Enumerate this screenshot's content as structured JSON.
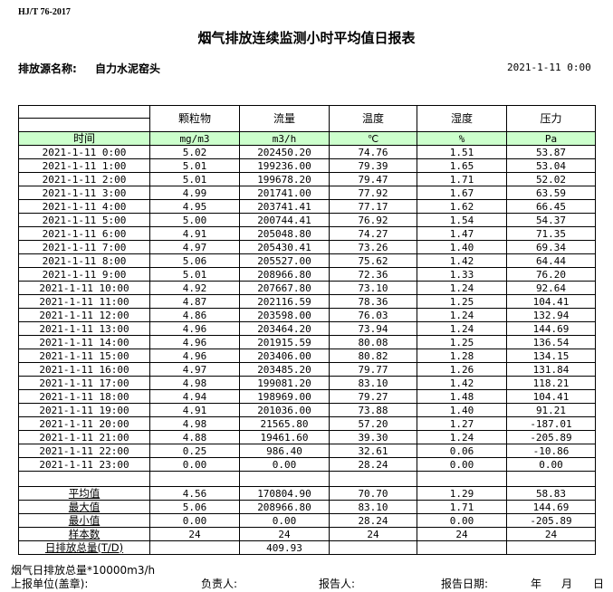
{
  "standard": "HJ/T  76-2017",
  "title": "烟气排放连续监测小时平均值日报表",
  "source_label": "排放源名称:",
  "source_name": "自力水泥窑头",
  "report_date": "2021-1-11 0:00",
  "columns": [
    "颗粒物",
    "流量",
    "温度",
    "湿度",
    "压力"
  ],
  "time_label": "时间",
  "units": [
    "mg/m3",
    "m3/h",
    "℃",
    "%",
    "Pa"
  ],
  "header_color": "#ccffcc",
  "rows": [
    [
      "2021-1-11 0:00",
      "5.02",
      "202450.20",
      "74.76",
      "1.51",
      "53.87"
    ],
    [
      "2021-1-11 1:00",
      "5.01",
      "199236.00",
      "79.39",
      "1.65",
      "53.04"
    ],
    [
      "2021-1-11 2:00",
      "5.01",
      "199678.20",
      "79.47",
      "1.71",
      "52.02"
    ],
    [
      "2021-1-11 3:00",
      "4.99",
      "201741.00",
      "77.92",
      "1.67",
      "63.59"
    ],
    [
      "2021-1-11 4:00",
      "4.95",
      "203741.41",
      "77.17",
      "1.62",
      "66.45"
    ],
    [
      "2021-1-11 5:00",
      "5.00",
      "200744.41",
      "76.92",
      "1.54",
      "54.37"
    ],
    [
      "2021-1-11 6:00",
      "4.91",
      "205048.80",
      "74.27",
      "1.47",
      "71.35"
    ],
    [
      "2021-1-11 7:00",
      "4.97",
      "205430.41",
      "73.26",
      "1.40",
      "69.34"
    ],
    [
      "2021-1-11 8:00",
      "5.06",
      "205527.00",
      "75.62",
      "1.42",
      "64.44"
    ],
    [
      "2021-1-11 9:00",
      "5.01",
      "208966.80",
      "72.36",
      "1.33",
      "76.20"
    ],
    [
      "2021-1-11 10:00",
      "4.92",
      "207667.80",
      "73.10",
      "1.24",
      "92.64"
    ],
    [
      "2021-1-11 11:00",
      "4.87",
      "202116.59",
      "78.36",
      "1.25",
      "104.41"
    ],
    [
      "2021-1-11 12:00",
      "4.86",
      "203598.00",
      "76.03",
      "1.24",
      "132.94"
    ],
    [
      "2021-1-11 13:00",
      "4.96",
      "203464.20",
      "73.94",
      "1.24",
      "144.69"
    ],
    [
      "2021-1-11 14:00",
      "4.96",
      "201915.59",
      "80.08",
      "1.25",
      "136.54"
    ],
    [
      "2021-1-11 15:00",
      "4.96",
      "203406.00",
      "80.82",
      "1.28",
      "134.15"
    ],
    [
      "2021-1-11 16:00",
      "4.97",
      "203485.20",
      "79.77",
      "1.26",
      "131.84"
    ],
    [
      "2021-1-11 17:00",
      "4.98",
      "199081.20",
      "83.10",
      "1.42",
      "118.21"
    ],
    [
      "2021-1-11 18:00",
      "4.94",
      "198969.00",
      "79.27",
      "1.48",
      "104.41"
    ],
    [
      "2021-1-11 19:00",
      "4.91",
      "201036.00",
      "73.88",
      "1.40",
      "91.21"
    ],
    [
      "2021-1-11 20:00",
      "4.98",
      "21565.80",
      "57.20",
      "1.27",
      "-187.01"
    ],
    [
      "2021-1-11 21:00",
      "4.88",
      "19461.60",
      "39.30",
      "1.24",
      "-205.89"
    ],
    [
      "2021-1-11 22:00",
      "0.25",
      "986.40",
      "32.61",
      "0.06",
      "-10.86"
    ],
    [
      "2021-1-11 23:00",
      "0.00",
      "0.00",
      "28.24",
      "0.00",
      "0.00"
    ]
  ],
  "summary": [
    [
      "平均值",
      "4.56",
      "170804.90",
      "70.70",
      "1.29",
      "58.83"
    ],
    [
      "最大值",
      "5.06",
      "208966.80",
      "83.10",
      "1.71",
      "144.69"
    ],
    [
      "最小值",
      "0.00",
      "0.00",
      "28.24",
      "0.00",
      "-205.89"
    ],
    [
      "样本数",
      "24",
      "24",
      "24",
      "24",
      "24"
    ],
    [
      "日排放总量(T/D)",
      "",
      "409.93",
      "",
      "",
      ""
    ]
  ],
  "footer": {
    "total_note": "烟气日排放总量*10000m3/h",
    "unit_label": "上报单位(盖章):",
    "responsible_label": "负责人:",
    "reporter_label": "报告人:",
    "date_label": "报告日期:",
    "year": "年",
    "month": "月",
    "day": "日"
  }
}
